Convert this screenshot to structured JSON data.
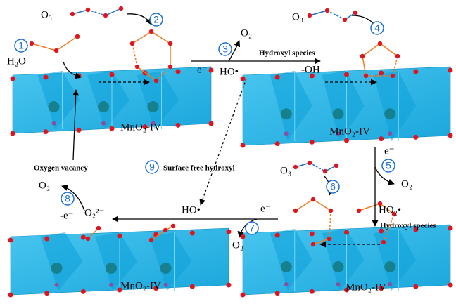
{
  "panels": [
    {
      "material": "MnO₂-IV"
    },
    {
      "material": "MnO₂-IV"
    },
    {
      "material": "MnO₂-IV"
    },
    {
      "material": "MnO₂-IV"
    }
  ],
  "steps": [
    "1",
    "2",
    "3",
    "4",
    "5",
    "6",
    "7",
    "8",
    "9"
  ],
  "annotations": {
    "o3_top_left": "O₃",
    "h2o": "H₂O",
    "o2_step3": "O₂",
    "e_step3": "e⁻",
    "ho_step3": "HO•",
    "hydroxyl_species_top": "Hydroxyl species",
    "oh": "-OH",
    "o3_top_right": "O₃",
    "e_step5": "e⁻",
    "o2_step5": "O₂",
    "ho2": "HO₂•",
    "hydroxyl_species_bottom": "Hydroxyl species",
    "o3_bottom": "O₃",
    "e_step7": "e⁻",
    "o2_step7": "O₂",
    "ho_step7": "HO•",
    "o2_2minus": "O₂²⁻",
    "minus_e": "-e⁻",
    "o2_step8": "O₂",
    "oxygen_vacancy": "Oxygen vacancy",
    "surface_free_hydroxyl": "Surface free hydroxyl"
  }
}
